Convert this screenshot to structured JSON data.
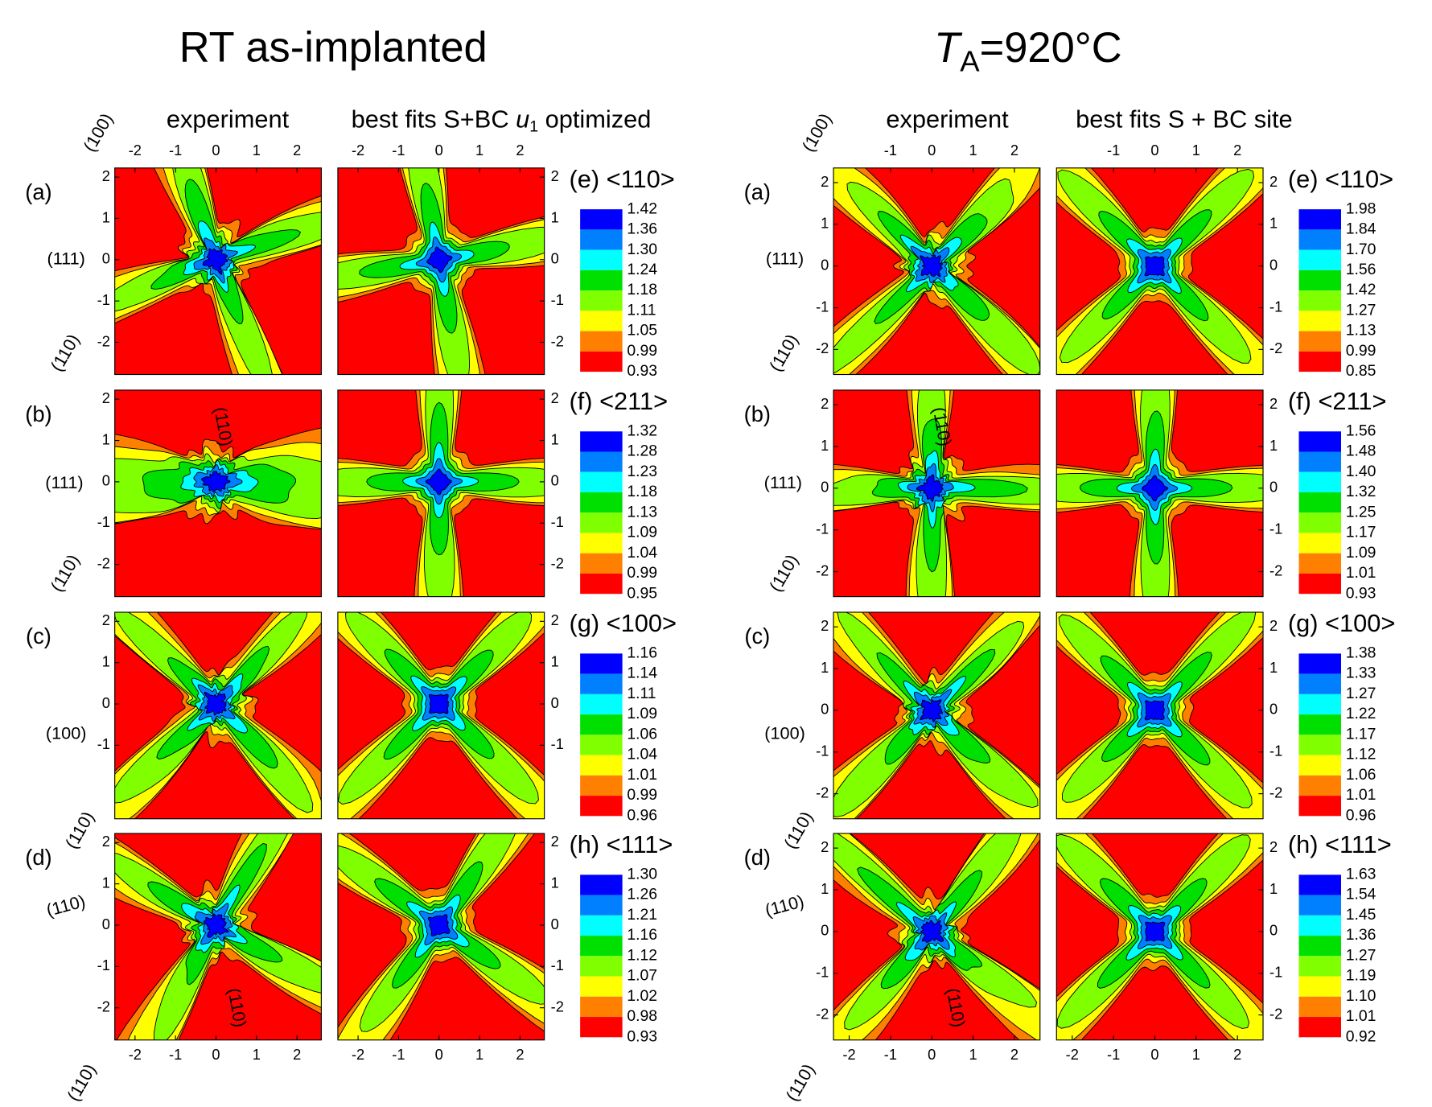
{
  "sections": [
    {
      "title": "RT as-implanted",
      "columns": {
        "experiment": "experiment",
        "fit": [
          "best fits S+BC ",
          "u",
          "1",
          " optimized"
        ]
      },
      "xlim": [
        -2.5,
        2.6
      ],
      "ylim": [
        -2.78,
        2.22
      ],
      "top_xticks": [
        -2,
        -1,
        0,
        1,
        2
      ],
      "bottom_xticks": [
        -2,
        -1,
        0,
        1,
        2
      ],
      "annotations": [
        "(100)",
        "(111)",
        "(110)",
        "(110)",
        "(111)",
        "(110)",
        "(100)",
        "(110)",
        "(110)",
        "(110)",
        "(110)"
      ],
      "rows": [
        {
          "label": "(a)",
          "legend": "(e) <110>",
          "yticks": [
            2,
            1,
            0,
            -1,
            -2
          ],
          "levels": [
            "1.42",
            "1.36",
            "1.30",
            "1.24",
            "1.18",
            "1.11",
            "1.05",
            "0.99",
            "0.93"
          ]
        },
        {
          "label": "(b)",
          "legend": "(f) <211>",
          "yticks": [
            2,
            1,
            0,
            -1,
            -2
          ],
          "levels": [
            "1.32",
            "1.28",
            "1.23",
            "1.18",
            "1.13",
            "1.09",
            "1.04",
            "0.99",
            "0.95"
          ]
        },
        {
          "label": "(c)",
          "legend": "(g) <100>",
          "yticks": [
            2,
            1,
            0,
            -1
          ],
          "levels": [
            "1.16",
            "1.14",
            "1.11",
            "1.09",
            "1.06",
            "1.04",
            "1.01",
            "0.99",
            "0.96"
          ]
        },
        {
          "label": "(d)",
          "legend": "(h) <111>",
          "yticks": [
            2,
            1,
            0,
            -1,
            -2
          ],
          "levels": [
            "1.30",
            "1.26",
            "1.21",
            "1.16",
            "1.12",
            "1.07",
            "1.02",
            "0.98",
            "0.93"
          ]
        }
      ]
    },
    {
      "title": [
        "T",
        "A",
        "=920°C"
      ],
      "columns": {
        "experiment": "experiment",
        "fit": [
          "best fits S + BC site"
        ]
      },
      "xlim": [
        -2.38,
        2.62
      ],
      "ylim": [
        -2.6,
        2.35
      ],
      "top_xticks": [
        -1,
        0,
        1,
        2
      ],
      "bottom_xticks": [
        -2,
        -1,
        0,
        1,
        2
      ],
      "annotations": [
        "(100)",
        "(111)",
        "(110)",
        "(110)",
        "(111)",
        "(110)",
        "(100)",
        "(110)",
        "(110)",
        "(110)",
        "(110)"
      ],
      "rows": [
        {
          "label": "(a)",
          "legend": "(e) <110>",
          "yticks": [
            2,
            1,
            0,
            -1,
            -2
          ],
          "levels": [
            "1.98",
            "1.84",
            "1.70",
            "1.56",
            "1.42",
            "1.27",
            "1.13",
            "0.99",
            "0.85"
          ]
        },
        {
          "label": "(b)",
          "legend": "(f) <211>",
          "yticks": [
            2,
            1,
            0,
            -1,
            -2
          ],
          "levels": [
            "1.56",
            "1.48",
            "1.40",
            "1.32",
            "1.25",
            "1.17",
            "1.09",
            "1.01",
            "0.93"
          ]
        },
        {
          "label": "(c)",
          "legend": "(g) <100>",
          "yticks": [
            2,
            1,
            0,
            -1,
            -2
          ],
          "levels": [
            "1.38",
            "1.33",
            "1.27",
            "1.22",
            "1.17",
            "1.12",
            "1.06",
            "1.01",
            "0.96"
          ]
        },
        {
          "label": "(d)",
          "legend": "(h) <111>",
          "yticks": [
            2,
            1,
            0,
            -1,
            -2
          ],
          "levels": [
            "1.63",
            "1.54",
            "1.45",
            "1.36",
            "1.27",
            "1.19",
            "1.10",
            "1.01",
            "0.92"
          ]
        }
      ]
    }
  ],
  "level_colors": [
    "#ff0000",
    "#ff8000",
    "#ffff00",
    "#80ff00",
    "#00e000",
    "#00ffff",
    "#0080ff",
    "#0000ff"
  ]
}
